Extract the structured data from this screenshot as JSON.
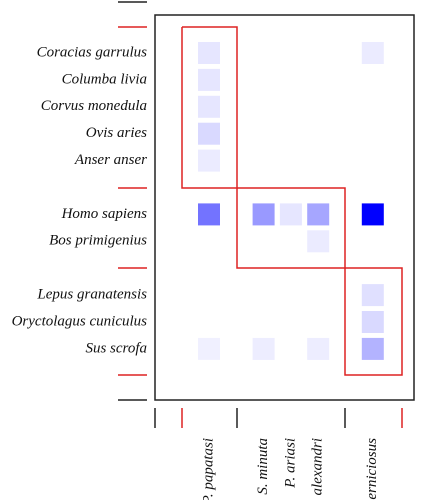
{
  "chart_data": {
    "type": "heatmap",
    "rows": [
      "Coracias garrulus",
      "Columba livia",
      "Corvus monedula",
      "Ovis aries",
      "Anser anser",
      null,
      "Homo sapiens",
      "Bos primigenius",
      null,
      "Lepus granatensis",
      "Oryctolagus cuniculus",
      "Sus scrofa"
    ],
    "columns": [
      "P. papatasi",
      null,
      "S. minuta",
      "P. ariasi",
      "P. alexandri",
      null,
      "P. perniciosus"
    ],
    "values": [
      [
        0.1,
        null,
        null,
        null,
        null,
        null,
        0.08
      ],
      [
        0.1,
        null,
        null,
        null,
        null,
        null,
        null
      ],
      [
        0.1,
        null,
        null,
        null,
        null,
        null,
        null
      ],
      [
        0.15,
        null,
        null,
        null,
        null,
        null,
        null
      ],
      [
        0.08,
        null,
        null,
        null,
        null,
        null,
        null
      ],
      [
        null,
        null,
        null,
        null,
        null,
        null,
        null
      ],
      [
        0.55,
        null,
        0.4,
        0.1,
        0.35,
        null,
        1.0
      ],
      [
        null,
        null,
        null,
        null,
        0.08,
        null,
        null
      ],
      [
        null,
        null,
        null,
        null,
        null,
        null,
        null
      ],
      [
        null,
        null,
        null,
        null,
        null,
        null,
        0.12
      ],
      [
        null,
        null,
        null,
        null,
        null,
        null,
        0.15
      ],
      [
        0.06,
        null,
        0.07,
        null,
        0.07,
        null,
        0.3
      ]
    ],
    "color": "#0000ff"
  }
}
